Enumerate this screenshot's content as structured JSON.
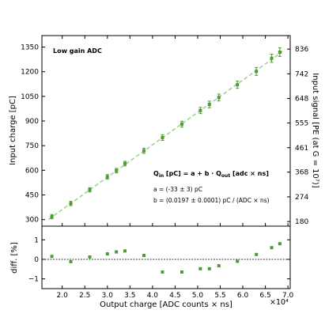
{
  "chart_data": [
    {
      "type": "scatter",
      "title": "Low gain ADC",
      "xlabel": "Output charge [ADC counts × ns]",
      "ylabel": "Input charge [pC]",
      "ylabel_right": "Input signal [PE (at G = 10⁷)]",
      "x_multiplier": "×10⁴",
      "xlim": [
        15500,
        70500
      ],
      "ylim": [
        260,
        1420
      ],
      "x_ticks": [
        20000,
        25000,
        30000,
        35000,
        40000,
        45000,
        50000,
        55000,
        60000,
        65000,
        70000
      ],
      "x_tick_labels": [
        "2.0",
        "2.5",
        "3.0",
        "3.5",
        "4.0",
        "4.5",
        "5.0",
        "5.5",
        "6.0",
        "6.5",
        "7.0"
      ],
      "y_ticks": [
        300,
        450,
        600,
        750,
        900,
        1050,
        1200,
        1350
      ],
      "y_tick_labels": [
        "300",
        "450",
        "600",
        "750",
        "900",
        "1050",
        "1200",
        "1350"
      ],
      "right_ticks": [
        180,
        274,
        368,
        461,
        555,
        648,
        742,
        836
      ],
      "right_tick_labels": [
        "180",
        "274",
        "368",
        "461",
        "555",
        "648",
        "742",
        "836"
      ],
      "right_scale": 1.6,
      "fit": {
        "intercept": -33,
        "slope": 0.0197,
        "style": "dashed",
        "color": "#9dd68e"
      },
      "formula": {
        "main_lhs": "Q",
        "main_lhs_sub": "in",
        "main_mid": " [pC] = a + b ·  Q",
        "main_rhs_sub": "out",
        "main_tail": " [adc × ns]",
        "a_line": "a = (-33 ± 3) pC",
        "b_line": "b = (0.0197 ± 0.0001) pC / (ADC × ns)"
      },
      "series": [
        {
          "color": "#4e9a34",
          "points": [
            {
              "x": 17700,
              "y": 318,
              "err": 13
            },
            {
              "x": 21900,
              "y": 398,
              "err": 13
            },
            {
              "x": 26100,
              "y": 481,
              "err": 13
            },
            {
              "x": 30000,
              "y": 560,
              "err": 14
            },
            {
              "x": 32000,
              "y": 598,
              "err": 14
            },
            {
              "x": 33900,
              "y": 641,
              "err": 14
            },
            {
              "x": 38100,
              "y": 719,
              "err": 16
            },
            {
              "x": 42200,
              "y": 799,
              "err": 17
            },
            {
              "x": 46500,
              "y": 881,
              "err": 18
            },
            {
              "x": 50600,
              "y": 964,
              "err": 19
            },
            {
              "x": 52600,
              "y": 1001,
              "err": 20
            },
            {
              "x": 54700,
              "y": 1043,
              "err": 21
            },
            {
              "x": 58800,
              "y": 1121,
              "err": 22
            },
            {
              "x": 63000,
              "y": 1202,
              "err": 24
            },
            {
              "x": 66400,
              "y": 1282,
              "err": 25
            },
            {
              "x": 68200,
              "y": 1319,
              "err": 26
            }
          ]
        }
      ]
    },
    {
      "type": "scatter",
      "ylabel": "diff. [%]",
      "ylim": [
        -1.5,
        1.7
      ],
      "y_ticks": [
        -1,
        0,
        1
      ],
      "y_tick_labels": [
        "−1",
        "0",
        "1"
      ],
      "reference_line": 0,
      "series": [
        {
          "color": "#4e9a34",
          "x": [
            17700,
            21900,
            26100,
            30000,
            32000,
            33900,
            38100,
            42200,
            46500,
            50600,
            52600,
            54700,
            58800,
            63000,
            66400,
            68200
          ],
          "values": [
            0.15,
            -0.12,
            0.12,
            0.28,
            0.38,
            0.43,
            0.2,
            -0.65,
            -0.65,
            -0.48,
            -0.48,
            -0.33,
            -0.1,
            0.25,
            0.6,
            0.8
          ]
        }
      ]
    }
  ]
}
